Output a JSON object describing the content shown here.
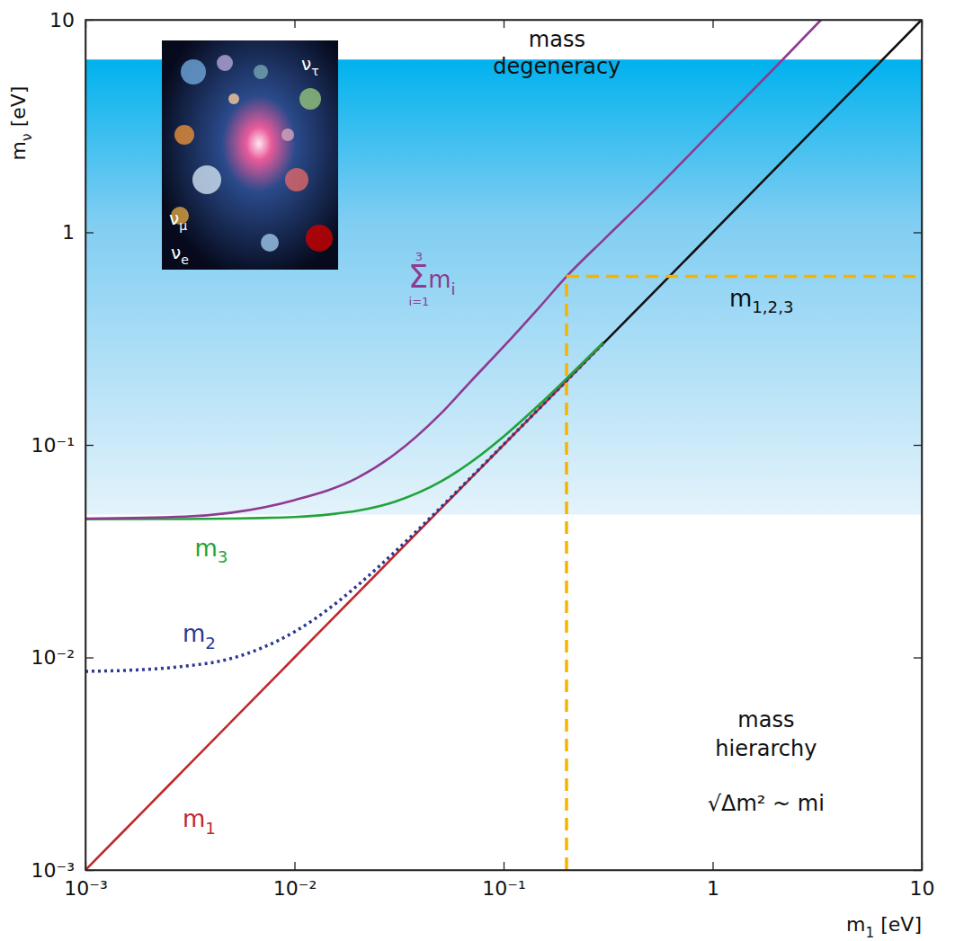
{
  "chart_data": {
    "type": "line",
    "log": true,
    "xlabel": "m1 [eV]",
    "ylabel": "mν [eV]",
    "xlim": [
      0.001,
      10
    ],
    "ylim": [
      0.001,
      10
    ],
    "xticks": [
      {
        "value": 0.001,
        "label": "10⁻³"
      },
      {
        "value": 0.01,
        "label": "10⁻²"
      },
      {
        "value": 0.1,
        "label": "10⁻¹"
      },
      1,
      10
    ],
    "yticks": [
      {
        "value": 0.001,
        "label": "10⁻³"
      },
      {
        "value": 0.01,
        "label": "10⁻²"
      },
      {
        "value": 0.1,
        "label": "10⁻¹"
      },
      1,
      10
    ],
    "series": [
      {
        "name": "m1",
        "color": "#c0282d",
        "line_style": "solid",
        "x": [
          0.001,
          0.002,
          0.003,
          0.005,
          0.007,
          0.01,
          0.015,
          0.02,
          0.03,
          0.05,
          0.07,
          0.1,
          0.15,
          0.2,
          0.3
        ],
        "values": [
          0.001,
          0.002,
          0.003,
          0.005,
          0.007,
          0.01,
          0.015,
          0.02,
          0.03,
          0.05,
          0.07,
          0.1,
          0.15,
          0.2,
          0.3
        ]
      },
      {
        "name": "m2",
        "color": "#2b3990",
        "line_style": "dotted",
        "x": [
          0.001,
          0.002,
          0.003,
          0.005,
          0.007,
          0.01,
          0.015,
          0.02,
          0.03,
          0.05,
          0.07,
          0.1,
          0.15,
          0.2,
          0.3
        ],
        "values": [
          0.0086,
          0.0088,
          0.0091,
          0.0099,
          0.0111,
          0.0132,
          0.0173,
          0.0218,
          0.0312,
          0.0507,
          0.0705,
          0.1004,
          0.1502,
          0.2002,
          0.3001
        ]
      },
      {
        "name": "m3",
        "color": "#1fa33a",
        "line_style": "solid",
        "x": [
          0.001,
          0.002,
          0.003,
          0.005,
          0.007,
          0.01,
          0.015,
          0.02,
          0.03,
          0.05,
          0.07,
          0.1,
          0.15,
          0.2,
          0.3
        ],
        "values": [
          0.0447,
          0.0448,
          0.0448,
          0.045,
          0.0453,
          0.0458,
          0.0472,
          0.049,
          0.0539,
          0.0671,
          0.0831,
          0.1095,
          0.1565,
          0.205,
          0.3033
        ]
      },
      {
        "name": "Σmi",
        "color": "#8e3a91",
        "line_style": "solid",
        "x": [
          0.001,
          0.003,
          0.005,
          0.01,
          0.02,
          0.03,
          0.05,
          0.07,
          0.1,
          0.15,
          0.2,
          0.3,
          0.5,
          1,
          2,
          3.3
        ],
        "values": [
          0.045,
          0.046,
          0.048,
          0.055,
          0.07,
          0.09,
          0.14,
          0.2,
          0.29,
          0.45,
          0.62,
          0.92,
          1.5,
          3,
          6,
          10
        ]
      },
      {
        "name": "m1,2,3",
        "color": "#111111",
        "line_style": "solid",
        "x": [
          0.3,
          1,
          3,
          10
        ],
        "values": [
          0.3,
          1,
          3,
          10
        ]
      }
    ],
    "sum_index": {
      "lower": "i=1",
      "upper": "3"
    },
    "bands": [
      {
        "label": "mass degeneracy",
        "range": [
          0.047,
          6.5
        ]
      }
    ],
    "annotations": [
      "mass hierarchy",
      "√Δm² ~ mi"
    ],
    "reference_lines": {
      "x": 0.2,
      "y": 0.62,
      "color": "#f5b400"
    },
    "inset_labels": [
      "ντ",
      "νμ",
      "νe"
    ]
  }
}
